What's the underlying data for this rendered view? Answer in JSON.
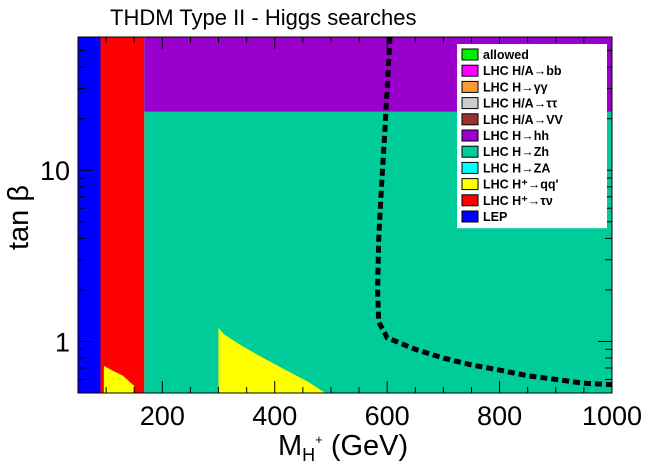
{
  "chart_data": {
    "type": "heatmap",
    "title": "THDM Type II - Higgs searches",
    "xlabel": {
      "main": "M",
      "sub": "H",
      "sup": "+",
      "unit": " (GeV)"
    },
    "ylabel": {
      "main": "tan ",
      "greek": "β"
    },
    "xlim": [
      50,
      1000
    ],
    "ylim": [
      0.5,
      60
    ],
    "yscale": "log",
    "x_ticks": [
      200,
      400,
      600,
      800,
      1000
    ],
    "x_tick_labels": [
      "200",
      "400",
      "600",
      "800",
      "1000"
    ],
    "y_ticks": [
      1,
      10
    ],
    "y_tick_labels": [
      "1",
      "10"
    ],
    "legend_position": "top-right",
    "legend": [
      {
        "label": "allowed",
        "color": "#00ee00"
      },
      {
        "label": "LHC H/A→bb",
        "color": "#ff00ff"
      },
      {
        "label": "LHC H→γγ",
        "color": "#ff9933"
      },
      {
        "label": "LHC H/A→ττ",
        "color": "#cccccc"
      },
      {
        "label": "LHC H/A→VV",
        "color": "#993333"
      },
      {
        "label": "LHC H→hh",
        "color": "#9900cc"
      },
      {
        "label": "LHC H→Zh",
        "color": "#00cc99"
      },
      {
        "label": "LHC H→ZA",
        "color": "#00ffff"
      },
      {
        "label": "LHC H⁺→qq'",
        "color": "#ffff00"
      },
      {
        "label": "LHC H⁺→τν",
        "color": "#ff0000"
      },
      {
        "label": "LEP",
        "color": "#0000ff"
      }
    ],
    "regions": [
      {
        "name": "LEP",
        "color": "#0000ff",
        "x_range": [
          50,
          90
        ],
        "y_range": [
          0.5,
          60
        ]
      },
      {
        "name": "LHC H⁺→τν",
        "color": "#ff0000",
        "x_range": [
          90,
          168
        ],
        "y_range": [
          0.5,
          60
        ]
      },
      {
        "name": "LHC H→Zh",
        "color": "#00cc99",
        "x_range": [
          168,
          1000
        ],
        "y_range": [
          0.5,
          60
        ]
      },
      {
        "name": "LHC H→hh",
        "color": "#9900cc",
        "x_range": [
          168,
          1000
        ],
        "y_range": [
          22,
          60
        ]
      },
      {
        "name": "LHC H⁺→qq'",
        "color": "#ffff00",
        "polygon": [
          [
            300,
            0.5
          ],
          [
            300,
            1.2
          ],
          [
            310,
            1.1
          ],
          [
            340,
            0.95
          ],
          [
            380,
            0.8
          ],
          [
            420,
            0.68
          ],
          [
            460,
            0.58
          ],
          [
            490,
            0.5
          ]
        ]
      },
      {
        "name": "LHC H⁺→qq'",
        "color": "#ffff00",
        "polygon": [
          [
            96,
            0.5
          ],
          [
            96,
            0.72
          ],
          [
            110,
            0.68
          ],
          [
            130,
            0.63
          ],
          [
            150,
            0.55
          ],
          [
            150,
            0.5
          ]
        ]
      }
    ],
    "boundary_line": {
      "style": "dashed",
      "color": "#000000",
      "points": [
        [
          605,
          60
        ],
        [
          600,
          30
        ],
        [
          595,
          15
        ],
        [
          590,
          8
        ],
        [
          585,
          4
        ],
        [
          583,
          2
        ],
        [
          585,
          1.3
        ],
        [
          600,
          1.05
        ],
        [
          650,
          0.9
        ],
        [
          700,
          0.8
        ],
        [
          750,
          0.73
        ],
        [
          800,
          0.68
        ],
        [
          850,
          0.63
        ],
        [
          900,
          0.6
        ],
        [
          950,
          0.57
        ],
        [
          1000,
          0.56
        ]
      ]
    }
  }
}
